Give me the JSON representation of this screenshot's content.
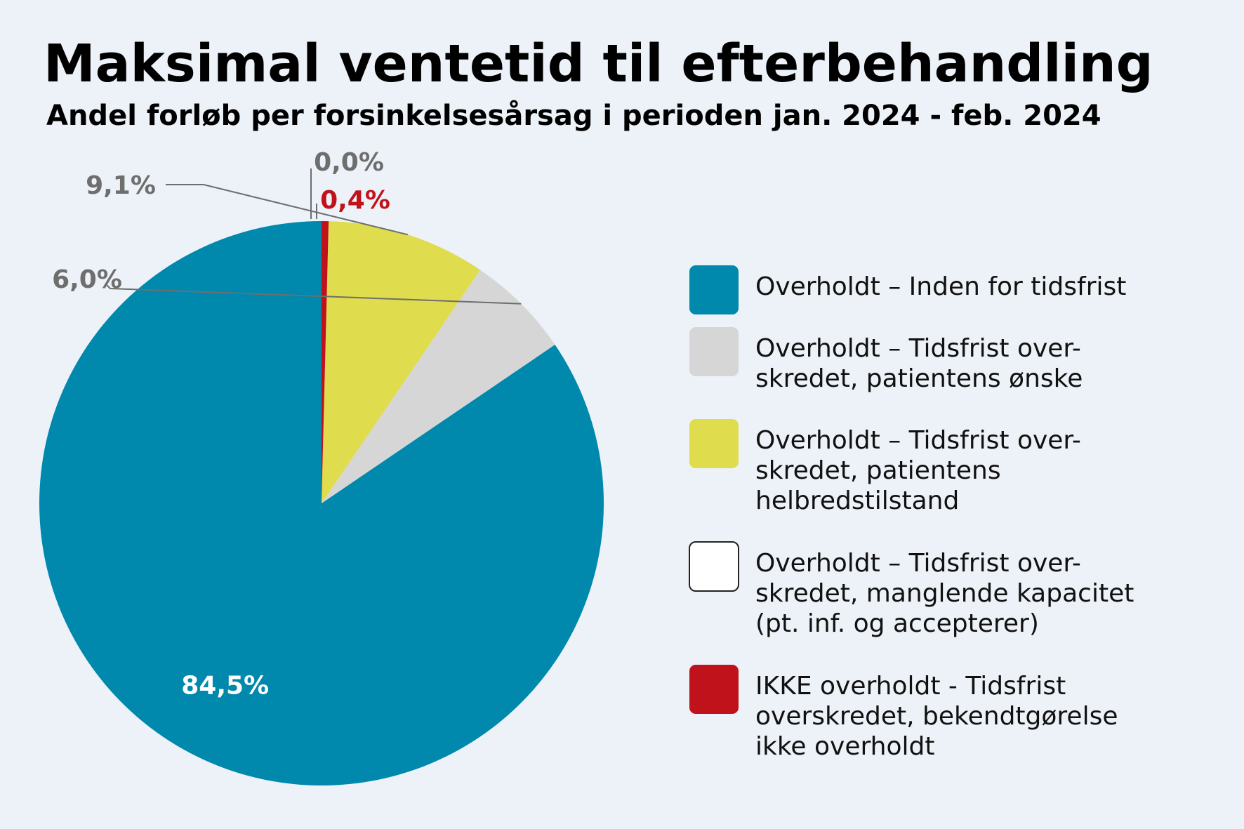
{
  "chart_data": {
    "type": "pie",
    "title": "Maksimal ventetid til efterbehandling",
    "subtitle": "Andel forløb per forsinkelsesårsag i perioden jan. 2024 - feb. 2024",
    "slices": [
      {
        "name": "Overholdt – Inden for tidsfrist",
        "legend_lines": [
          "Overholdt – Inden for tidsfrist"
        ],
        "value": 84.5,
        "label": "84,5%",
        "color": "#0088ad",
        "label_color": "#ffffff"
      },
      {
        "name": "Overholdt – Tidsfrist overskredet, patientens ønske",
        "legend_lines": [
          "Overholdt – Tidsfrist over-",
          "skredet, patientens ønske"
        ],
        "value": 6.0,
        "label": "6,0%",
        "color": "#d6d6d6",
        "label_color": "#6e6e6e"
      },
      {
        "name": "Overholdt – Tidsfrist overskredet, patientens helbredstilstand",
        "legend_lines": [
          "Overholdt – Tidsfrist over-",
          "skredet, patientens",
          "helbredstilstand"
        ],
        "value": 9.1,
        "label": "9,1%",
        "color": "#dfdc4d",
        "label_color": "#6e6e6e"
      },
      {
        "name": "Overholdt – Tidsfrist overskredet, manglende kapacitet (pt. inf. og accepterer)",
        "legend_lines": [
          "Overholdt – Tidsfrist over-",
          "skredet, manglende kapacitet",
          "(pt. inf. og accepterer)"
        ],
        "value": 0.0,
        "label": "0,0%",
        "color": "#ffffff",
        "label_color": "#6e6e6e"
      },
      {
        "name": "IKKE overholdt - Tidsfrist overskredet, bekendtgørelse ikke overholdt",
        "legend_lines": [
          "IKKE overholdt - Tidsfrist",
          "overskredet, bekendtgørelse",
          "ikke overholdt"
        ],
        "value": 0.4,
        "label": "0,4%",
        "color": "#c0121b",
        "label_color": "#c0121b"
      }
    ],
    "slice_order_clockwise_from_top": [
      0,
      1,
      2,
      3,
      4
    ],
    "legend_order": [
      0,
      1,
      2,
      3,
      4
    ]
  }
}
